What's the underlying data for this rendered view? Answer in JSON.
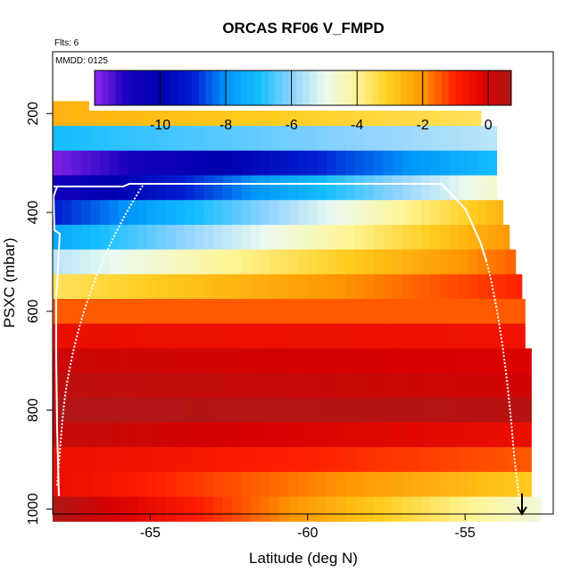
{
  "chart_data": {
    "type": "heatmap",
    "title": "ORCAS RF06 V_FMPD",
    "subtitle_flights": "Flts: 6",
    "subtitle_date": "MMDD: 0125",
    "xlabel": "Latitude (deg N)",
    "ylabel": "PSXC (mbar)",
    "xlim": [
      -68.1,
      -52.2
    ],
    "ylim": [
      1010,
      75
    ],
    "x_ticks": [
      "-65",
      "-60",
      "-55"
    ],
    "x_tick_values": [
      -65,
      -60,
      -55
    ],
    "y_ticks": [
      "200",
      "400",
      "600",
      "800",
      "1000"
    ],
    "y_tick_values": [
      200,
      400,
      600,
      800,
      1000
    ],
    "colorbar": {
      "range": [
        -12,
        0.7
      ],
      "ticks": [
        "-10",
        "-8",
        "-6",
        "-4",
        "-2",
        "0"
      ],
      "tick_values": [
        -10,
        -8,
        -6,
        -4,
        -2,
        0
      ]
    },
    "row_height_mbar": 50,
    "rows": [
      {
        "pressure": 200,
        "lat_end": -54.5,
        "left": -2.5,
        "right": -3.5
      },
      {
        "pressure": 250,
        "lat_end": -54.0,
        "left": -7.0,
        "right": -5.5
      },
      {
        "pressure": 300,
        "lat_end": -54.0,
        "left": -11.8,
        "right": -7.0
      },
      {
        "pressure": 350,
        "lat_end": -54.0,
        "left": -10.8,
        "right": -4.5
      },
      {
        "pressure": 400,
        "lat_end": -53.8,
        "left": -9.0,
        "right": -2.5
      },
      {
        "pressure": 450,
        "lat_end": -53.6,
        "left": -7.5,
        "right": -2.0
      },
      {
        "pressure": 500,
        "lat_end": -53.4,
        "left": -5.5,
        "right": -1.5
      },
      {
        "pressure": 550,
        "lat_end": -53.2,
        "left": -3.5,
        "right": -1.0
      },
      {
        "pressure": 600,
        "lat_end": -53.1,
        "left": -1.5,
        "right": -1.5
      },
      {
        "pressure": 650,
        "lat_end": -53.1,
        "left": -0.5,
        "right": -0.6
      },
      {
        "pressure": 700,
        "lat_end": -52.9,
        "left": 0.2,
        "right": -0.1
      },
      {
        "pressure": 750,
        "lat_end": -52.9,
        "left": 0.4,
        "right": 0.1
      },
      {
        "pressure": 800,
        "lat_end": -52.9,
        "left": 0.6,
        "right": 0.5
      },
      {
        "pressure": 850,
        "lat_end": -52.9,
        "left": 0.3,
        "right": -0.5
      },
      {
        "pressure": 900,
        "lat_end": -52.9,
        "left": -0.5,
        "right": -1.5
      },
      {
        "pressure": 950,
        "lat_end": -52.9,
        "left": -0.5,
        "right": -3.0
      },
      {
        "pressure": 1000,
        "lat_end": -52.6,
        "left": 0.6,
        "right": -4.8
      }
    ]
  }
}
